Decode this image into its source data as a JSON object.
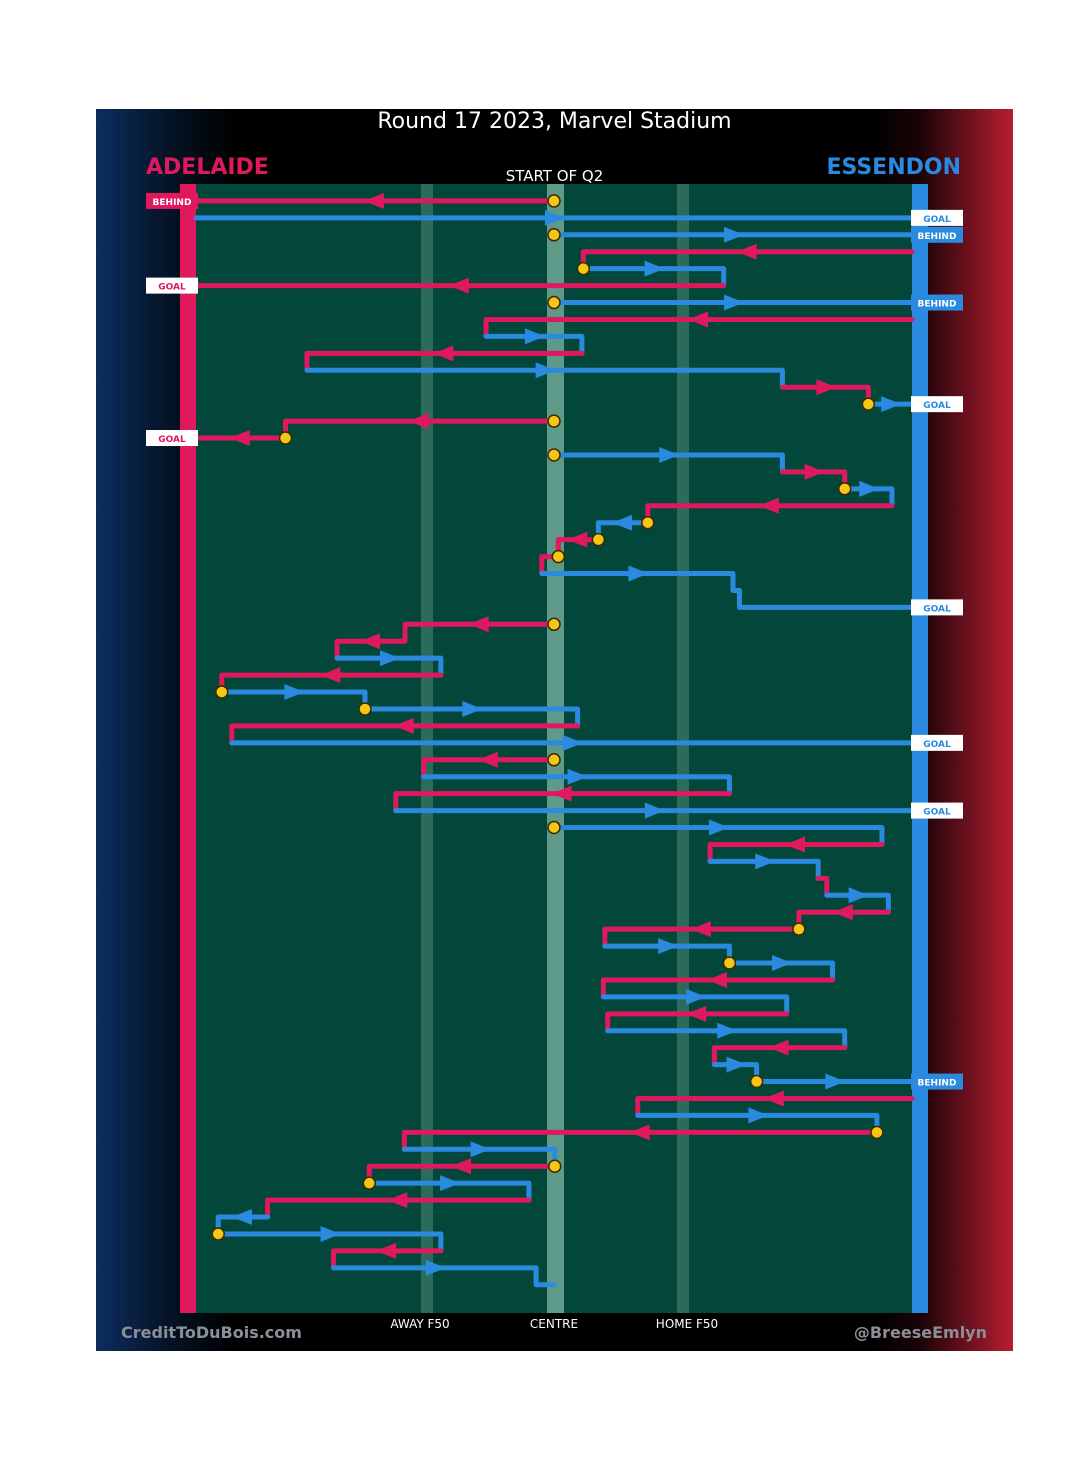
{
  "chart_data": {
    "type": "line",
    "title": "Round 17 2023, Marvel Stadium",
    "subtitle": "START OF Q2",
    "teams": {
      "home": {
        "name": "ADELAIDE",
        "color": "#e0195f"
      },
      "away": {
        "name": "ESSENDON",
        "color": "#2a8ae0"
      }
    },
    "x_axis": {
      "ticks": [
        {
          "label": "AWAY F50",
          "x": 0.314
        },
        {
          "label": "CENTRE",
          "x": 0.5
        },
        {
          "label": "HOME F50",
          "x": 0.68
        }
      ]
    },
    "chains": [
      {
        "team": "home",
        "y": 0.015,
        "pts": [
          [
            0.5,
            0.015
          ],
          [
            0,
            0.015
          ]
        ],
        "start": true,
        "result": "BEHIND"
      },
      {
        "team": "away",
        "y": 0.03,
        "pts": [
          [
            0,
            0.03
          ],
          [
            1,
            0.03
          ]
        ],
        "start": false,
        "result": "GOAL"
      },
      {
        "team": "away",
        "y": 0.045,
        "pts": [
          [
            0.5,
            0.045
          ],
          [
            1,
            0.045
          ]
        ],
        "start": true,
        "result": "BEHIND"
      },
      {
        "team": "home",
        "pts": [
          [
            1,
            0.06
          ],
          [
            0.541,
            0.06
          ],
          [
            0.541,
            0.075
          ]
        ],
        "start": false
      },
      {
        "team": "away",
        "pts": [
          [
            0.541,
            0.075
          ],
          [
            0.737,
            0.075
          ],
          [
            0.737,
            0.09
          ]
        ],
        "start": true
      },
      {
        "team": "home",
        "pts": [
          [
            0.737,
            0.09
          ],
          [
            0,
            0.09
          ]
        ],
        "start": false,
        "result": "GOAL"
      },
      {
        "team": "away",
        "pts": [
          [
            0.5,
            0.105
          ],
          [
            1,
            0.105
          ]
        ],
        "start": true,
        "result": "BEHIND"
      },
      {
        "team": "home",
        "pts": [
          [
            1,
            0.12
          ],
          [
            0.405,
            0.12
          ],
          [
            0.405,
            0.135
          ]
        ],
        "start": false
      },
      {
        "team": "away",
        "pts": [
          [
            0.405,
            0.135
          ],
          [
            0.539,
            0.135
          ],
          [
            0.539,
            0.15
          ]
        ],
        "start": false
      },
      {
        "team": "home",
        "pts": [
          [
            0.539,
            0.15
          ],
          [
            0.155,
            0.15
          ],
          [
            0.155,
            0.165
          ]
        ],
        "start": false
      },
      {
        "team": "away",
        "pts": [
          [
            0.155,
            0.165
          ],
          [
            0.819,
            0.165
          ],
          [
            0.819,
            0.18
          ]
        ],
        "start": false
      },
      {
        "team": "home",
        "pts": [
          [
            0.819,
            0.18
          ],
          [
            0.939,
            0.18
          ],
          [
            0.939,
            0.195
          ]
        ],
        "start": false
      },
      {
        "team": "away",
        "pts": [
          [
            0.939,
            0.195
          ],
          [
            1,
            0.195
          ]
        ],
        "start": true,
        "result": "GOAL"
      },
      {
        "team": "home",
        "pts": [
          [
            0.5,
            0.21
          ],
          [
            0.125,
            0.21
          ],
          [
            0.125,
            0.225
          ]
        ],
        "start": true
      },
      {
        "team": "home",
        "pts": [
          [
            0.125,
            0.225
          ],
          [
            0,
            0.225
          ]
        ],
        "start": true,
        "result": "GOAL"
      },
      {
        "team": "away",
        "pts": [
          [
            0.5,
            0.24
          ],
          [
            0.819,
            0.24
          ],
          [
            0.819,
            0.255
          ]
        ],
        "start": true
      },
      {
        "team": "home",
        "pts": [
          [
            0.819,
            0.255
          ],
          [
            0.906,
            0.255
          ],
          [
            0.906,
            0.27
          ]
        ],
        "start": false
      },
      {
        "team": "away",
        "pts": [
          [
            0.906,
            0.27
          ],
          [
            0.972,
            0.27
          ],
          [
            0.972,
            0.285
          ]
        ],
        "start": true
      },
      {
        "team": "home",
        "pts": [
          [
            0.972,
            0.285
          ],
          [
            0.631,
            0.285
          ],
          [
            0.631,
            0.3
          ]
        ],
        "start": false
      },
      {
        "team": "away",
        "pts": [
          [
            0.631,
            0.3
          ],
          [
            0.562,
            0.3
          ],
          [
            0.562,
            0.315
          ]
        ],
        "start": true
      },
      {
        "team": "home",
        "pts": [
          [
            0.562,
            0.315
          ],
          [
            0.506,
            0.315
          ],
          [
            0.506,
            0.33
          ]
        ],
        "start": true
      },
      {
        "team": "home",
        "pts": [
          [
            0.506,
            0.33
          ],
          [
            0.483,
            0.33
          ],
          [
            0.483,
            0.345
          ]
        ],
        "start": true
      },
      {
        "team": "away",
        "pts": [
          [
            0.483,
            0.345
          ],
          [
            0.75,
            0.345
          ],
          [
            0.75,
            0.36
          ],
          [
            0.759,
            0.36
          ],
          [
            0.759,
            0.375
          ],
          [
            1,
            0.375
          ]
        ],
        "start": false,
        "result": "GOAL"
      },
      {
        "team": "home",
        "pts": [
          [
            0.5,
            0.39
          ],
          [
            0.292,
            0.39
          ],
          [
            0.292,
            0.405
          ]
        ],
        "start": true
      },
      {
        "team": "home",
        "pts": [
          [
            0.292,
            0.405
          ],
          [
            0.197,
            0.405
          ],
          [
            0.197,
            0.42
          ]
        ],
        "start": false
      },
      {
        "team": "away",
        "pts": [
          [
            0.197,
            0.42
          ],
          [
            0.342,
            0.42
          ],
          [
            0.342,
            0.435
          ]
        ],
        "start": false
      },
      {
        "team": "home",
        "pts": [
          [
            0.342,
            0.435
          ],
          [
            0.036,
            0.435
          ],
          [
            0.036,
            0.45
          ]
        ],
        "start": false
      },
      {
        "team": "away",
        "pts": [
          [
            0.036,
            0.45
          ],
          [
            0.236,
            0.45
          ],
          [
            0.236,
            0.465
          ]
        ],
        "start": true
      },
      {
        "team": "away",
        "pts": [
          [
            0.236,
            0.465
          ],
          [
            0.533,
            0.465
          ],
          [
            0.533,
            0.48
          ]
        ],
        "start": true
      },
      {
        "team": "home",
        "pts": [
          [
            0.533,
            0.48
          ],
          [
            0.05,
            0.48
          ],
          [
            0.05,
            0.495
          ]
        ],
        "start": false
      },
      {
        "team": "away",
        "pts": [
          [
            0.05,
            0.495
          ],
          [
            1,
            0.495
          ]
        ],
        "start": false,
        "result": "GOAL"
      },
      {
        "team": "home",
        "pts": [
          [
            0.5,
            0.51
          ],
          [
            0.318,
            0.51
          ],
          [
            0.318,
            0.525
          ]
        ],
        "start": true
      },
      {
        "team": "away",
        "pts": [
          [
            0.318,
            0.525
          ],
          [
            0.745,
            0.525
          ],
          [
            0.745,
            0.54
          ]
        ],
        "start": false
      },
      {
        "team": "home",
        "pts": [
          [
            0.745,
            0.54
          ],
          [
            0.279,
            0.54
          ],
          [
            0.279,
            0.555
          ]
        ],
        "start": false
      },
      {
        "team": "away",
        "pts": [
          [
            0.279,
            0.555
          ],
          [
            1,
            0.555
          ]
        ],
        "start": false,
        "result": "GOAL"
      },
      {
        "team": "away",
        "pts": [
          [
            0.5,
            0.57
          ],
          [
            0.958,
            0.57
          ],
          [
            0.958,
            0.585
          ]
        ],
        "start": true
      },
      {
        "team": "home",
        "pts": [
          [
            0.958,
            0.585
          ],
          [
            0.718,
            0.585
          ],
          [
            0.718,
            0.6
          ]
        ],
        "start": false
      },
      {
        "team": "away",
        "pts": [
          [
            0.718,
            0.6
          ],
          [
            0.869,
            0.6
          ],
          [
            0.869,
            0.615
          ]
        ],
        "start": false
      },
      {
        "team": "home",
        "pts": [
          [
            0.869,
            0.615
          ],
          [
            0.881,
            0.615
          ],
          [
            0.881,
            0.63
          ]
        ],
        "start": false
      },
      {
        "team": "away",
        "pts": [
          [
            0.881,
            0.63
          ],
          [
            0.967,
            0.63
          ],
          [
            0.967,
            0.645
          ]
        ],
        "start": false
      },
      {
        "team": "home",
        "pts": [
          [
            0.967,
            0.645
          ],
          [
            0.842,
            0.645
          ],
          [
            0.842,
            0.66
          ]
        ],
        "start": false
      },
      {
        "team": "home",
        "pts": [
          [
            0.842,
            0.66
          ],
          [
            0.571,
            0.66
          ],
          [
            0.571,
            0.675
          ]
        ],
        "start": true
      },
      {
        "team": "away",
        "pts": [
          [
            0.571,
            0.675
          ],
          [
            0.745,
            0.675
          ],
          [
            0.745,
            0.69
          ]
        ],
        "start": false
      },
      {
        "team": "away",
        "pts": [
          [
            0.745,
            0.69
          ],
          [
            0.889,
            0.69
          ],
          [
            0.889,
            0.705
          ]
        ],
        "start": true
      },
      {
        "team": "home",
        "pts": [
          [
            0.889,
            0.705
          ],
          [
            0.569,
            0.705
          ],
          [
            0.569,
            0.72
          ]
        ],
        "start": false
      },
      {
        "team": "away",
        "pts": [
          [
            0.569,
            0.72
          ],
          [
            0.825,
            0.72
          ],
          [
            0.825,
            0.735
          ]
        ],
        "start": false
      },
      {
        "team": "home",
        "pts": [
          [
            0.825,
            0.735
          ],
          [
            0.575,
            0.735
          ],
          [
            0.575,
            0.75
          ]
        ],
        "start": false
      },
      {
        "team": "away",
        "pts": [
          [
            0.575,
            0.75
          ],
          [
            0.906,
            0.75
          ],
          [
            0.906,
            0.765
          ]
        ],
        "start": false
      },
      {
        "team": "home",
        "pts": [
          [
            0.906,
            0.765
          ],
          [
            0.724,
            0.765
          ],
          [
            0.724,
            0.78
          ]
        ],
        "start": false
      },
      {
        "team": "away",
        "pts": [
          [
            0.724,
            0.78
          ],
          [
            0.783,
            0.78
          ],
          [
            0.783,
            0.795
          ]
        ],
        "start": false
      },
      {
        "team": "away",
        "pts": [
          [
            0.783,
            0.795
          ],
          [
            1,
            0.795
          ]
        ],
        "start": true,
        "result": "BEHIND"
      },
      {
        "team": "home",
        "pts": [
          [
            1,
            0.81
          ],
          [
            0.617,
            0.81
          ],
          [
            0.617,
            0.825
          ]
        ],
        "start": false
      },
      {
        "team": "away",
        "pts": [
          [
            0.617,
            0.825
          ],
          [
            0.951,
            0.825
          ],
          [
            0.951,
            0.84
          ]
        ],
        "start": false
      },
      {
        "team": "home",
        "pts": [
          [
            0.951,
            0.84
          ],
          [
            0.291,
            0.84
          ],
          [
            0.291,
            0.855
          ]
        ],
        "start": true
      },
      {
        "team": "away",
        "pts": [
          [
            0.291,
            0.855
          ],
          [
            0.501,
            0.855
          ],
          [
            0.501,
            0.87
          ]
        ],
        "start": false
      },
      {
        "team": "home",
        "pts": [
          [
            0.501,
            0.87
          ],
          [
            0.242,
            0.87
          ],
          [
            0.242,
            0.885
          ]
        ],
        "start": true
      },
      {
        "team": "away",
        "pts": [
          [
            0.242,
            0.885
          ],
          [
            0.465,
            0.885
          ],
          [
            0.465,
            0.9
          ]
        ],
        "start": true
      },
      {
        "team": "home",
        "pts": [
          [
            0.465,
            0.9
          ],
          [
            0.1,
            0.9
          ],
          [
            0.1,
            0.915
          ]
        ],
        "start": false
      },
      {
        "team": "away",
        "pts": [
          [
            0.1,
            0.915
          ],
          [
            0.031,
            0.915
          ],
          [
            0.031,
            0.93
          ]
        ],
        "start": false
      },
      {
        "team": "away",
        "pts": [
          [
            0.031,
            0.93
          ],
          [
            0.342,
            0.93
          ],
          [
            0.342,
            0.945
          ]
        ],
        "start": true
      },
      {
        "team": "home",
        "pts": [
          [
            0.342,
            0.945
          ],
          [
            0.192,
            0.945
          ],
          [
            0.192,
            0.96
          ]
        ],
        "start": false
      },
      {
        "team": "away",
        "pts": [
          [
            0.192,
            0.96
          ],
          [
            0.475,
            0.96
          ],
          [
            0.475,
            0.975
          ],
          [
            0.5,
            0.975
          ]
        ],
        "start": false
      }
    ]
  },
  "header": {
    "title": "Round 17 2023, Marvel Stadium",
    "subtitle": "START OF Q2",
    "home_team": "ADELAIDE",
    "away_team": "ESSENDON"
  },
  "axis": {
    "away_f50": "AWAY F50",
    "centre": "CENTRE",
    "home_f50": "HOME F50"
  },
  "footer": {
    "left": "CreditToDuBois.com",
    "right": "@BreeseEmlyn"
  }
}
